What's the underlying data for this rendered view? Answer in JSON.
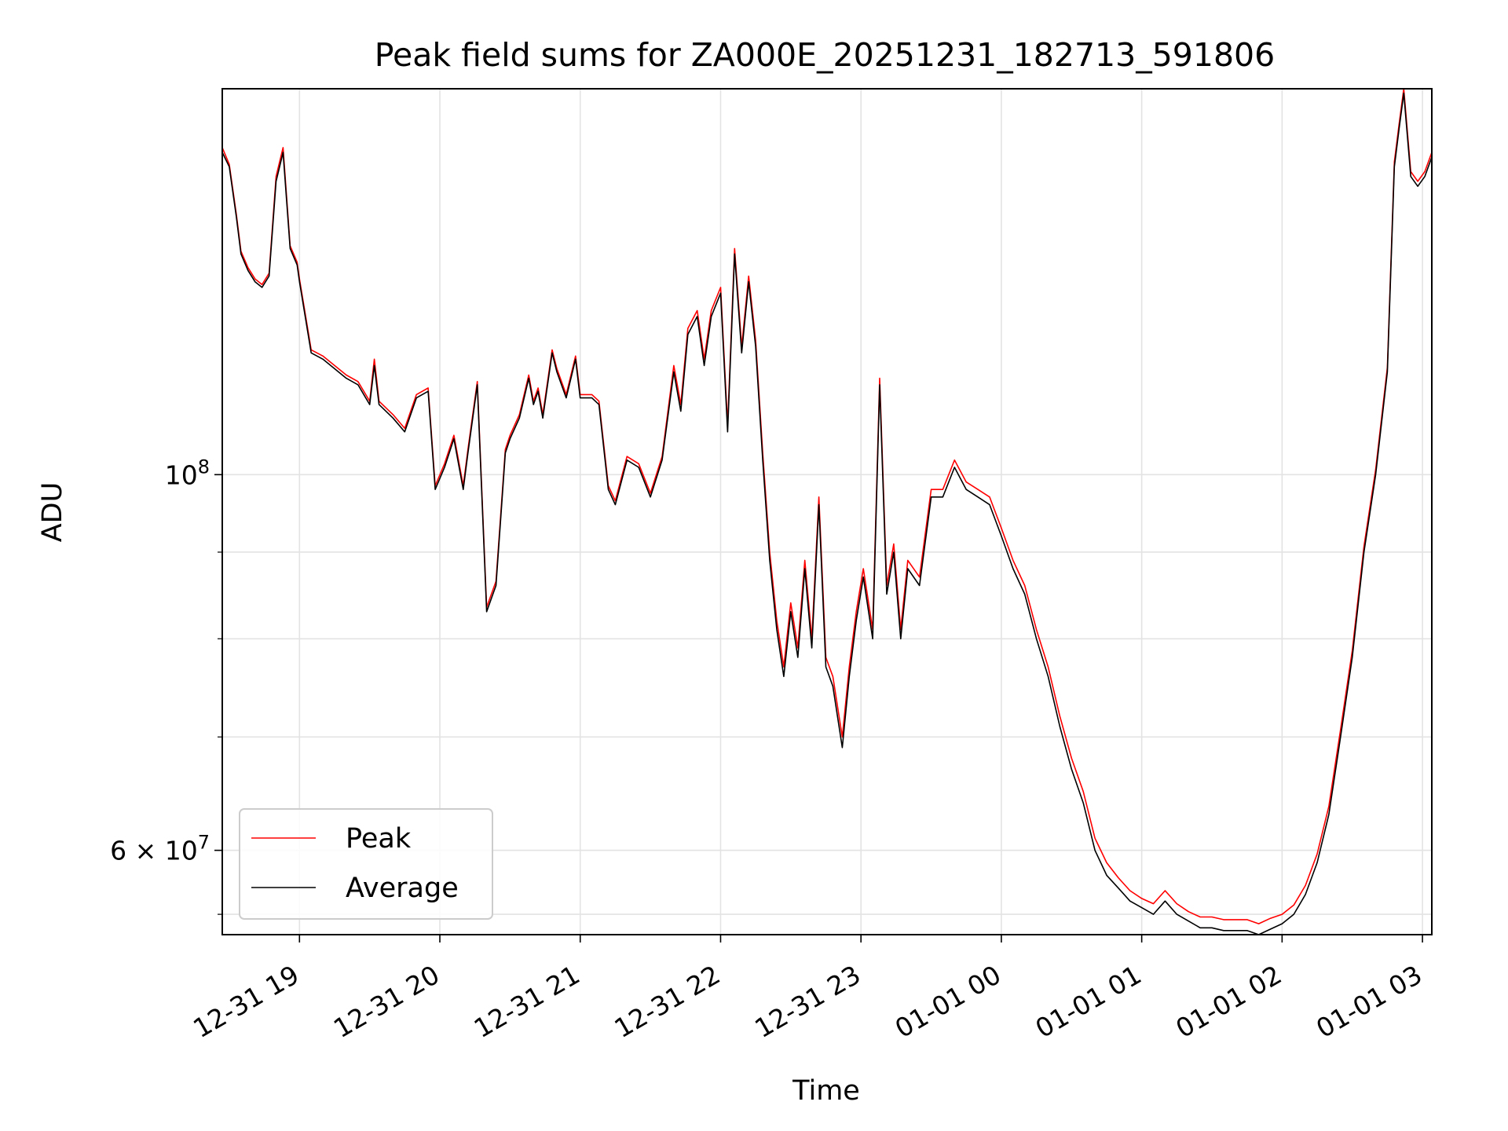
{
  "chart_data": {
    "type": "line",
    "title": "Peak field sums for ZA000E_20251231_182713_591806",
    "xlabel": "Time",
    "ylabel": "ADU",
    "yscale": "log",
    "ylim": [
      53500000,
      169000000
    ],
    "xlim": [
      "12-31 18:27",
      "01-01 03:04"
    ],
    "grid": true,
    "legend": "lower-left",
    "x_ticks": [
      "12-31 19",
      "12-31 20",
      "12-31 21",
      "12-31 22",
      "12-31 23",
      "01-01 00",
      "01-01 01",
      "01-01 02",
      "01-01 03"
    ],
    "y_ticks": [
      {
        "value": 60000000,
        "label_base": "6 × 10",
        "label_exp": "7"
      },
      {
        "value": 100000000,
        "label_base": "10",
        "label_exp": "8"
      }
    ],
    "x": [
      "12-31 18:27",
      "12-31 18:30",
      "12-31 18:33",
      "12-31 18:35",
      "12-31 18:38",
      "12-31 18:41",
      "12-31 18:44",
      "12-31 18:47",
      "12-31 18:50",
      "12-31 18:53",
      "12-31 18:56",
      "12-31 18:59",
      "12-31 19:00",
      "12-31 19:05",
      "12-31 19:10",
      "12-31 19:20",
      "12-31 19:25",
      "12-31 19:30",
      "12-31 19:32",
      "12-31 19:34",
      "12-31 19:40",
      "12-31 19:45",
      "12-31 19:50",
      "12-31 19:55",
      "12-31 19:58",
      "12-31 20:02",
      "12-31 20:06",
      "12-31 20:10",
      "12-31 20:12",
      "12-31 20:16",
      "12-31 20:20",
      "12-31 20:24",
      "12-31 20:28",
      "12-31 20:30",
      "12-31 20:34",
      "12-31 20:38",
      "12-31 20:40",
      "12-31 20:42",
      "12-31 20:44",
      "12-31 20:48",
      "12-31 20:50",
      "12-31 20:54",
      "12-31 20:58",
      "12-31 21:00",
      "12-31 21:05",
      "12-31 21:08",
      "12-31 21:12",
      "12-31 21:15",
      "12-31 21:20",
      "12-31 21:25",
      "12-31 21:30",
      "12-31 21:35",
      "12-31 21:40",
      "12-31 21:43",
      "12-31 21:46",
      "12-31 21:50",
      "12-31 21:53",
      "12-31 21:56",
      "12-31 22:00",
      "12-31 22:03",
      "12-31 22:06",
      "12-31 22:09",
      "12-31 22:12",
      "12-31 22:15",
      "12-31 22:18",
      "12-31 22:21",
      "12-31 22:24",
      "12-31 22:27",
      "12-31 22:30",
      "12-31 22:33",
      "12-31 22:36",
      "12-31 22:39",
      "12-31 22:42",
      "12-31 22:45",
      "12-31 22:48",
      "12-31 22:52",
      "12-31 22:55",
      "12-31 22:58",
      "12-31 23:01",
      "12-31 23:05",
      "12-31 23:08",
      "12-31 23:11",
      "12-31 23:14",
      "12-31 23:17",
      "12-31 23:20",
      "12-31 23:25",
      "12-31 23:30",
      "12-31 23:35",
      "12-31 23:40",
      "12-31 23:45",
      "12-31 23:50",
      "12-31 23:55",
      "01-01 00:00",
      "01-01 00:05",
      "01-01 00:10",
      "01-01 00:15",
      "01-01 00:20",
      "01-01 00:25",
      "01-01 00:30",
      "01-01 00:35",
      "01-01 00:40",
      "01-01 00:45",
      "01-01 00:50",
      "01-01 00:55",
      "01-01 01:00",
      "01-01 01:05",
      "01-01 01:10",
      "01-01 01:15",
      "01-01 01:20",
      "01-01 01:25",
      "01-01 01:30",
      "01-01 01:35",
      "01-01 01:40",
      "01-01 01:45",
      "01-01 01:50",
      "01-01 01:55",
      "01-01 02:00",
      "01-01 02:05",
      "01-01 02:10",
      "01-01 02:15",
      "01-01 02:20",
      "01-01 02:25",
      "01-01 02:30",
      "01-01 02:35",
      "01-01 02:40",
      "01-01 02:45",
      "01-01 02:48",
      "01-01 02:50",
      "01-01 02:52",
      "01-01 02:55",
      "01-01 02:58",
      "01-01 03:01",
      "01-01 03:04"
    ],
    "series": [
      {
        "name": "Average",
        "color": "#000000",
        "values": [
          155000000,
          152000000,
          142000000,
          135000000,
          132000000,
          130000000,
          129000000,
          131000000,
          149000000,
          155000000,
          136000000,
          133000000,
          130000000,
          118000000,
          117000000,
          114000000,
          113000000,
          110000000,
          116000000,
          110000000,
          108000000,
          106000000,
          111000000,
          112000000,
          98000000,
          101000000,
          105000000,
          98000000,
          103000000,
          113000000,
          83000000,
          86000000,
          103000000,
          105000000,
          108000000,
          114000000,
          110000000,
          112000000,
          108000000,
          118000000,
          115000000,
          111000000,
          117000000,
          111000000,
          111000000,
          110000000,
          98000000,
          96000000,
          102000000,
          101000000,
          97000000,
          102000000,
          115000000,
          109000000,
          121000000,
          124000000,
          116000000,
          124000000,
          128000000,
          106000000,
          135000000,
          118000000,
          130000000,
          119000000,
          102000000,
          89000000,
          81000000,
          76000000,
          83000000,
          78000000,
          88000000,
          79000000,
          96000000,
          77000000,
          75000000,
          69000000,
          76000000,
          82000000,
          87000000,
          80000000,
          113000000,
          85000000,
          90000000,
          80000000,
          88000000,
          86000000,
          97000000,
          97000000,
          101000000,
          98000000,
          97000000,
          96000000,
          92000000,
          88000000,
          85000000,
          80000000,
          76000000,
          71000000,
          67000000,
          64000000,
          60000000,
          58000000,
          57000000,
          56000000,
          55500000,
          55000000,
          56000000,
          55000000,
          54500000,
          54000000,
          54000000,
          53800000,
          53800000,
          53800000,
          53500000,
          53900000,
          54300000,
          55000000,
          56500000,
          59000000,
          63000000,
          70000000,
          78000000,
          90000000,
          100000000,
          115000000,
          152000000,
          160000000,
          168000000,
          150000000,
          148000000,
          150000000,
          154000000
        ]
      },
      {
        "name": "Peak",
        "color": "#ff0000",
        "values": [
          156000000,
          152500000,
          142500000,
          135500000,
          132500000,
          130500000,
          129500000,
          131500000,
          150000000,
          156000000,
          136500000,
          133500000,
          130500000,
          118500000,
          117500000,
          114500000,
          113500000,
          110500000,
          117000000,
          110500000,
          108500000,
          106500000,
          111500000,
          112500000,
          98500000,
          101500000,
          105500000,
          98500000,
          103500000,
          113500000,
          83500000,
          86500000,
          103500000,
          105500000,
          108500000,
          114500000,
          110500000,
          112500000,
          108500000,
          118500000,
          115500000,
          111500000,
          117500000,
          111500000,
          111500000,
          110500000,
          98500000,
          96500000,
          102500000,
          101500000,
          97500000,
          102500000,
          116000000,
          110000000,
          122000000,
          125000000,
          117000000,
          125000000,
          129000000,
          107000000,
          136000000,
          119000000,
          131000000,
          120000000,
          103000000,
          90000000,
          82000000,
          77000000,
          84000000,
          79000000,
          89000000,
          80000000,
          97000000,
          78000000,
          76000000,
          70000000,
          77000000,
          83000000,
          88000000,
          81000000,
          114000000,
          86000000,
          91000000,
          81000000,
          89000000,
          87000000,
          98000000,
          98000000,
          102000000,
          99000000,
          98000000,
          97000000,
          93000000,
          89000000,
          86000000,
          81000000,
          77000000,
          72000000,
          68000000,
          65000000,
          61000000,
          59000000,
          57800000,
          56800000,
          56200000,
          55800000,
          56800000,
          55800000,
          55200000,
          54800000,
          54800000,
          54600000,
          54600000,
          54600000,
          54300000,
          54700000,
          55000000,
          55700000,
          57200000,
          59700000,
          63700000,
          70700000,
          78700000,
          90700000,
          100700000,
          115700000,
          153000000,
          161000000,
          169000000,
          151000000,
          149000000,
          151000000,
          155000000
        ]
      }
    ]
  }
}
